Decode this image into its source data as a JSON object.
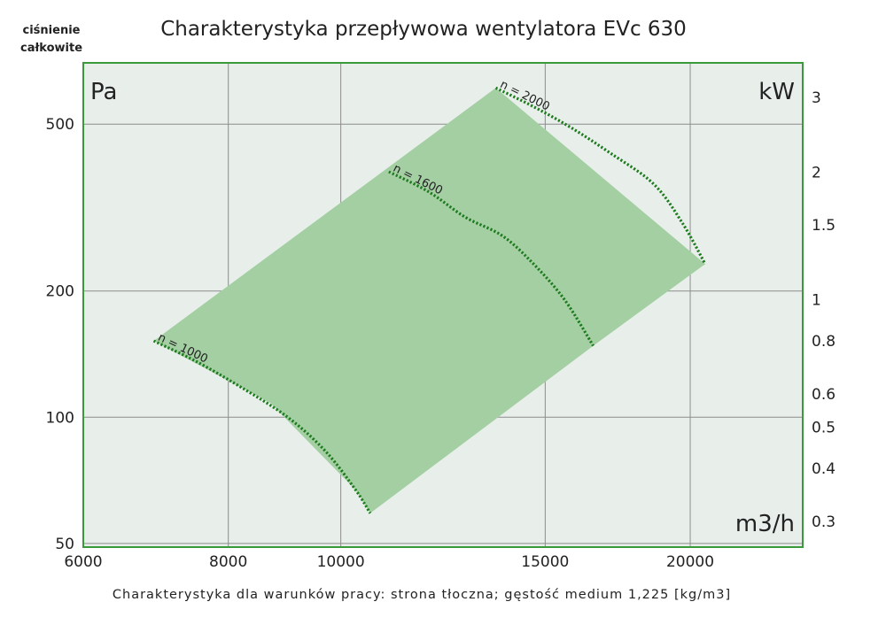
{
  "chart_data": {
    "type": "area",
    "title": "Charakterystyka przepływowa wentylatora EVc 630",
    "y_axis_label": "ciśnienie całkowite",
    "y_unit": "Pa",
    "x_unit": "m3/h",
    "power_unit": "kW",
    "footnote": "Charakterystyka dla warunków pracy: strona tłoczna; gęstość medium 1,225 [kg/m3]",
    "x_scale": "log",
    "y_scale": "log",
    "xlim": [
      6000,
      25000
    ],
    "ylim": [
      49,
      700
    ],
    "x_ticks": [
      6000,
      8000,
      10000,
      15000,
      20000
    ],
    "y_ticks": [
      50,
      100,
      200,
      500
    ],
    "power_ticks": [
      "3",
      "2",
      "1.5",
      "1",
      "0.8",
      "0.6",
      "0.5",
      "0.4",
      "0.3"
    ],
    "grid": true,
    "colors": {
      "plot_bg": "#e8efea",
      "frame": "#3a9a3a",
      "grid": "#8c8c8c",
      "area": "#a3cfa3",
      "curve": "#1d7a1d"
    },
    "operating_area": {
      "name": "",
      "points": [
        [
          6900,
          152
        ],
        [
          13600,
          610
        ],
        [
          20600,
          232
        ],
        [
          16500,
          148
        ],
        [
          10600,
          59
        ],
        [
          10300,
          67
        ],
        [
          8700,
          108
        ],
        [
          6900,
          152
        ]
      ]
    },
    "series": [
      {
        "name": "n = 1000",
        "x": [
          6900,
          7500,
          8200,
          9000,
          9700,
          10300,
          10600
        ],
        "y": [
          152,
          136,
          118,
          100,
          83,
          67,
          59
        ]
      },
      {
        "name": "n = 1600",
        "x": [
          11000,
          11900,
          12800,
          13800,
          14700,
          15600,
          16500
        ],
        "y": [
          385,
          345,
          300,
          270,
          230,
          190,
          148
        ]
      },
      {
        "name": "n = 2000",
        "x": [
          13600,
          14700,
          15800,
          17100,
          18600,
          19700,
          20600
        ],
        "y": [
          610,
          548,
          490,
          425,
          360,
          290,
          232
        ]
      }
    ]
  }
}
